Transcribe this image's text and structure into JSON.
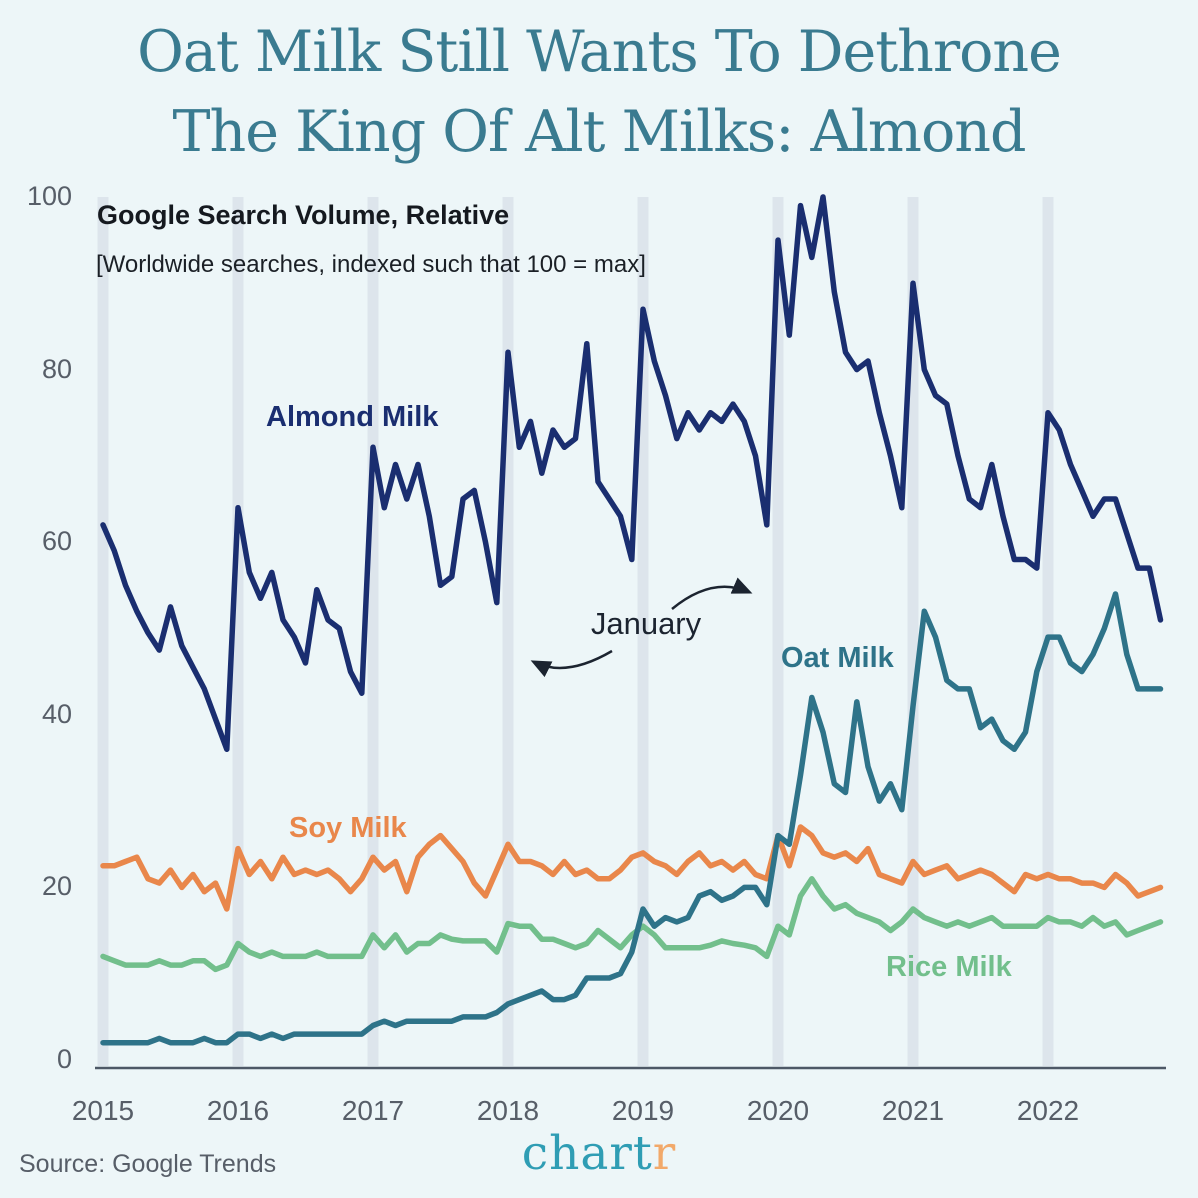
{
  "title": {
    "line1": "Oat Milk Still Wants To Dethrone",
    "line2": "The King Of Alt Milks: Almond"
  },
  "subtitle": "Google Search Volume, Relative",
  "subtitle_note": "[Worldwide searches, indexed such that 100 = max]",
  "annotation": {
    "label": "January"
  },
  "source": "Source: Google Trends",
  "logo": {
    "part1": "chart",
    "part2": "r"
  },
  "colors": {
    "background": "#edf6f8",
    "title": "#3a7b90",
    "almond": "#1a2e70",
    "oat": "#2e7389",
    "soy": "#e9874b",
    "rice": "#72bf8c",
    "january_band": "#dde5ec",
    "axis_line": "#4d5866",
    "tick_text": "#575e68",
    "logo_teal": "#2f9db4",
    "logo_orange": "#f2a96a"
  },
  "axes": {
    "y_ticks": [
      100,
      80,
      60,
      40,
      20,
      0
    ],
    "x_ticks": [
      "2015",
      "2016",
      "2017",
      "2018",
      "2019",
      "2020",
      "2021",
      "2022"
    ],
    "ylim": [
      0,
      100
    ]
  },
  "chart_data": {
    "type": "line",
    "title": "Google Search Volume, Relative",
    "note": "Worldwide searches, indexed such that 100 = max",
    "x_start": "2015-01",
    "x_end": "2022-11",
    "x_interval": "monthly",
    "ylim": [
      0,
      100
    ],
    "grid": "vertical January bands",
    "legend_position": "inline labels on lines",
    "series": [
      {
        "name": "Almond Milk",
        "color": "#1a2e70",
        "values": [
          62,
          59,
          55,
          52,
          49.5,
          47.5,
          52.5,
          48,
          45.5,
          43,
          39.5,
          36,
          64,
          56.5,
          53.5,
          56.5,
          51,
          49,
          46,
          54.5,
          51,
          50,
          45,
          42.5,
          71,
          64,
          69,
          65,
          69,
          63,
          55,
          56,
          65,
          66,
          60,
          53,
          82,
          71,
          74,
          68,
          73,
          71,
          72,
          83,
          67,
          65,
          63,
          58,
          87,
          81,
          77,
          72,
          75,
          73,
          75,
          74,
          76,
          74,
          70,
          62,
          95,
          84,
          99,
          93,
          100,
          89,
          82,
          80,
          81,
          75,
          70,
          64,
          90,
          80,
          77,
          76,
          70,
          65,
          64,
          69,
          63,
          58,
          58,
          57,
          75,
          73,
          69,
          66,
          63,
          65,
          65,
          61,
          57,
          57,
          51
        ]
      },
      {
        "name": "Oat Milk",
        "color": "#2e7389",
        "values": [
          2,
          2,
          2,
          2,
          2,
          2.5,
          2,
          2,
          2,
          2.5,
          2,
          2,
          3,
          3,
          2.5,
          3,
          2.5,
          3,
          3,
          3,
          3,
          3,
          3,
          3,
          4,
          4.5,
          4,
          4.5,
          4.5,
          4.5,
          4.5,
          4.5,
          5,
          5,
          5,
          5.5,
          6.5,
          7,
          7.5,
          8,
          7,
          7,
          7.5,
          9.5,
          9.5,
          9.5,
          10,
          12.5,
          17.5,
          15.5,
          16.5,
          16,
          16.5,
          19,
          19.5,
          18.5,
          19,
          20,
          20,
          18,
          26,
          25,
          33,
          42,
          38,
          32,
          31,
          41.5,
          34,
          30,
          32,
          29,
          41,
          52,
          49,
          44,
          43,
          43,
          38.5,
          39.5,
          37,
          36,
          38,
          45,
          49,
          49,
          46,
          45,
          47,
          50,
          54,
          47,
          43,
          43,
          43
        ]
      },
      {
        "name": "Soy Milk",
        "color": "#e9874b",
        "values": [
          22.5,
          22.5,
          23,
          23.5,
          21,
          20.5,
          22,
          20,
          21.5,
          19.5,
          20.5,
          17.5,
          24.5,
          21.5,
          23,
          21,
          23.5,
          21.5,
          22,
          21.5,
          22,
          21,
          19.5,
          21,
          23.5,
          22,
          23,
          19.5,
          23.5,
          25,
          26,
          24.5,
          23,
          20.5,
          19,
          22,
          25,
          23,
          23,
          22.5,
          21.5,
          23,
          21.5,
          22,
          21,
          21,
          22,
          23.5,
          24,
          23,
          22.5,
          21.5,
          23,
          24,
          22.5,
          23,
          22,
          23,
          21.5,
          21,
          26,
          22.5,
          27,
          26,
          24,
          23.5,
          24,
          23,
          24.5,
          21.5,
          21,
          20.5,
          23,
          21.5,
          22,
          22.5,
          21,
          21.5,
          22,
          21.5,
          20.5,
          19.5,
          21.5,
          21,
          21.5,
          21,
          21,
          20.5,
          20.5,
          20,
          21.5,
          20.5,
          19,
          19.5,
          20
        ]
      },
      {
        "name": "Rice Milk",
        "color": "#72bf8c",
        "values": [
          12,
          11.5,
          11,
          11,
          11,
          11.5,
          11,
          11,
          11.5,
          11.5,
          10.5,
          11,
          13.5,
          12.5,
          12,
          12.5,
          12,
          12,
          12,
          12.5,
          12,
          12,
          12,
          12,
          14.5,
          13,
          14.5,
          12.5,
          13.5,
          13.5,
          14.5,
          14,
          13.8,
          13.8,
          13.8,
          12.5,
          15.8,
          15.5,
          15.5,
          14,
          14,
          13.5,
          13,
          13.5,
          15,
          14,
          13,
          14.5,
          15.5,
          14.5,
          13,
          13,
          13,
          13,
          13.3,
          13.8,
          13.5,
          13.3,
          13,
          12,
          15.5,
          14.5,
          19,
          21,
          19,
          17.5,
          18,
          17,
          16.5,
          16,
          15,
          16,
          17.5,
          16.5,
          16,
          15.5,
          16,
          15.5,
          16,
          16.5,
          15.5,
          15.5,
          15.5,
          15.5,
          16.5,
          16,
          16,
          15.5,
          16.5,
          15.5,
          16,
          14.5,
          15,
          15.5,
          16
        ]
      }
    ]
  }
}
